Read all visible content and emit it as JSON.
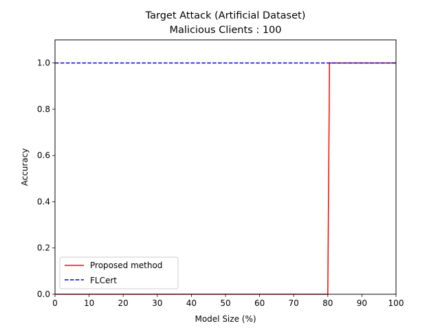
{
  "chart_data": {
    "type": "line",
    "title": [
      "Target Attack (Artificial Dataset)",
      "Malicious Clients : 100"
    ],
    "xlabel": "Model Size (%)",
    "ylabel": "Accuracy",
    "xlim": [
      0,
      100
    ],
    "ylim": [
      0,
      1.1
    ],
    "xticks": [
      0,
      10,
      20,
      30,
      40,
      50,
      60,
      70,
      80,
      90,
      100
    ],
    "yticks": [
      0.0,
      0.2,
      0.4,
      0.6,
      0.8,
      1.0
    ],
    "xtick_labels": [
      "0",
      "10",
      "20",
      "30",
      "40",
      "50",
      "60",
      "70",
      "80",
      "90",
      "100"
    ],
    "ytick_labels": [
      "0.0",
      "0.2",
      "0.4",
      "0.6",
      "0.8",
      "1.0"
    ],
    "grid": false,
    "legend_position": "lower-left",
    "series": [
      {
        "name": "Proposed method",
        "color": "#ff0000",
        "style": "solid",
        "x": [
          0,
          80,
          80.5,
          100
        ],
        "y": [
          0.0,
          0.0,
          1.0,
          1.0
        ]
      },
      {
        "name": "FLCert",
        "color": "#0000cc",
        "style": "dashed",
        "x": [
          0,
          100
        ],
        "y": [
          1.0,
          1.0
        ]
      }
    ]
  }
}
